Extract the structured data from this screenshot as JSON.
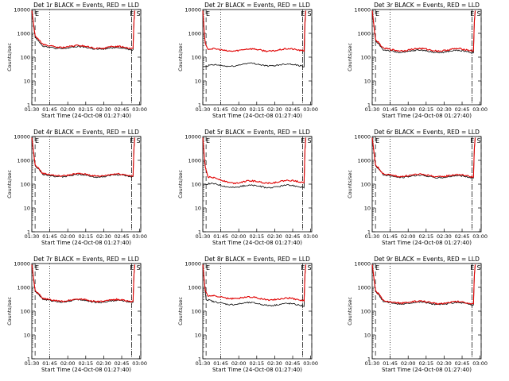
{
  "chart_data": [
    {
      "type": "line",
      "title": "Det 1r BLACK = Events, RED = LLD",
      "xlabel": "Start Time (24-Oct-08 01:27:40)",
      "ylabel": "Counts/sec",
      "x_ticks": [
        "01:30",
        "01:45",
        "02:00",
        "02:15",
        "02:30",
        "02:45",
        "03:00"
      ],
      "y_ticks": [
        "1",
        "10",
        "100",
        "1000",
        "10000"
      ],
      "log_y": true,
      "markers": [
        "E",
        "S"
      ],
      "series": [
        {
          "name": "Events",
          "color": "#000000",
          "shape": [
            [
              0,
              9000
            ],
            [
              0.03,
              700
            ],
            [
              0.1,
              260
            ],
            [
              0.6,
              240
            ],
            [
              0.93,
              220
            ],
            [
              0.94,
              9000
            ]
          ]
        },
        {
          "name": "LLD",
          "color": "#e00000",
          "shape": [
            [
              0,
              9000
            ],
            [
              0.03,
              800
            ],
            [
              0.1,
              300
            ],
            [
              0.6,
              260
            ],
            [
              0.93,
              250
            ],
            [
              0.94,
              9000
            ]
          ]
        }
      ]
    },
    {
      "type": "line",
      "title": "Det 2r BLACK = Events, RED = LLD",
      "xlabel": "Start Time (24-Oct-08 01:27:40)",
      "ylabel": "Counts/sec",
      "x_ticks": [
        "01:30",
        "01:45",
        "02:00",
        "02:15",
        "02:30",
        "02:45",
        "03:00"
      ],
      "y_ticks": [
        "1",
        "10",
        "100",
        "1000",
        "10000"
      ],
      "log_y": true,
      "markers": [
        "E",
        "S"
      ],
      "series": [
        {
          "name": "Events",
          "color": "#000000",
          "shape": [
            [
              0,
              40
            ],
            [
              0.4,
              50
            ],
            [
              0.93,
              45
            ],
            [
              0.94,
              9000
            ]
          ]
        },
        {
          "name": "LLD",
          "color": "#e00000",
          "shape": [
            [
              0,
              9000
            ],
            [
              0.02,
              400
            ],
            [
              0.05,
              200
            ],
            [
              0.93,
              200
            ],
            [
              0.94,
              9000
            ]
          ]
        }
      ]
    },
    {
      "type": "line",
      "title": "Det 3r BLACK = Events, RED = LLD",
      "xlabel": "Start Time (24-Oct-08 01:27:40)",
      "ylabel": "Counts/sec",
      "x_ticks": [
        "01:30",
        "01:45",
        "02:00",
        "02:15",
        "02:30",
        "02:45",
        "03:00"
      ],
      "y_ticks": [
        "1",
        "10",
        "100",
        "1000",
        "10000"
      ],
      "log_y": true,
      "markers": [
        "E",
        "S"
      ],
      "series": [
        {
          "name": "Events",
          "color": "#000000",
          "shape": [
            [
              0,
              9000
            ],
            [
              0.03,
              500
            ],
            [
              0.1,
              180
            ],
            [
              0.93,
              170
            ],
            [
              0.94,
              9000
            ]
          ]
        },
        {
          "name": "LLD",
          "color": "#e00000",
          "shape": [
            [
              0,
              9000
            ],
            [
              0.03,
              550
            ],
            [
              0.1,
              210
            ],
            [
              0.93,
              200
            ],
            [
              0.94,
              9000
            ]
          ]
        }
      ]
    },
    {
      "type": "line",
      "title": "Det 4r BLACK = Events, RED = LLD",
      "xlabel": "Start Time (24-Oct-08 01:27:40)",
      "ylabel": "Counts/sec",
      "x_ticks": [
        "01:30",
        "01:45",
        "02:00",
        "02:15",
        "02:30",
        "02:45",
        "03:00"
      ],
      "y_ticks": [
        "1",
        "10",
        "100",
        "1000",
        "10000"
      ],
      "log_y": true,
      "markers": [
        "E",
        "S"
      ],
      "series": [
        {
          "name": "Events",
          "color": "#000000",
          "shape": [
            [
              0,
              9000
            ],
            [
              0.03,
              600
            ],
            [
              0.1,
              230
            ],
            [
              0.93,
              220
            ],
            [
              0.94,
              9000
            ]
          ]
        },
        {
          "name": "LLD",
          "color": "#e00000",
          "shape": [
            [
              0,
              9000
            ],
            [
              0.03,
              650
            ],
            [
              0.1,
              250
            ],
            [
              0.93,
              240
            ],
            [
              0.94,
              9000
            ]
          ]
        }
      ]
    },
    {
      "type": "line",
      "title": "Det 5r BLACK = Events, RED = LLD",
      "xlabel": "Start Time (24-Oct-08 01:27:40)",
      "ylabel": "Counts/sec",
      "x_ticks": [
        "01:30",
        "01:45",
        "02:00",
        "02:15",
        "02:30",
        "02:45",
        "03:00"
      ],
      "y_ticks": [
        "1",
        "10",
        "100",
        "1000",
        "10000"
      ],
      "log_y": true,
      "markers": [
        "E",
        "S"
      ],
      "series": [
        {
          "name": "Events",
          "color": "#000000",
          "shape": [
            [
              0,
              100
            ],
            [
              0.3,
              80
            ],
            [
              0.93,
              80
            ],
            [
              0.94,
              9000
            ]
          ]
        },
        {
          "name": "LLD",
          "color": "#e00000",
          "shape": [
            [
              0,
              9000
            ],
            [
              0.02,
              600
            ],
            [
              0.05,
              180
            ],
            [
              0.3,
              120
            ],
            [
              0.93,
              130
            ],
            [
              0.94,
              9000
            ]
          ]
        }
      ]
    },
    {
      "type": "line",
      "title": "Det 6r BLACK = Events, RED = LLD",
      "xlabel": "Start Time (24-Oct-08 01:27:40)",
      "ylabel": "Counts/sec",
      "x_ticks": [
        "01:30",
        "01:45",
        "02:00",
        "02:15",
        "02:30",
        "02:45",
        "03:00"
      ],
      "y_ticks": [
        "1",
        "10",
        "100",
        "1000",
        "10000"
      ],
      "log_y": true,
      "markers": [
        "E",
        "S"
      ],
      "series": [
        {
          "name": "Events",
          "color": "#000000",
          "shape": [
            [
              0,
              9000
            ],
            [
              0.03,
              600
            ],
            [
              0.1,
              220
            ],
            [
              0.93,
              200
            ],
            [
              0.94,
              9000
            ]
          ]
        },
        {
          "name": "LLD",
          "color": "#e00000",
          "shape": [
            [
              0,
              9000
            ],
            [
              0.03,
              650
            ],
            [
              0.1,
              240
            ],
            [
              0.93,
              220
            ],
            [
              0.94,
              9000
            ]
          ]
        }
      ]
    },
    {
      "type": "line",
      "title": "Det 7r BLACK = Events, RED = LLD",
      "xlabel": "Start Time (24-Oct-08 01:27:40)",
      "ylabel": "Counts/sec",
      "x_ticks": [
        "01:30",
        "01:45",
        "02:00",
        "02:15",
        "02:30",
        "02:45",
        "03:00"
      ],
      "y_ticks": [
        "1",
        "10",
        "100",
        "1000",
        "10000"
      ],
      "log_y": true,
      "markers": [
        "E",
        "S"
      ],
      "series": [
        {
          "name": "Events",
          "color": "#000000",
          "shape": [
            [
              0,
              9000
            ],
            [
              0.03,
              700
            ],
            [
              0.1,
              280
            ],
            [
              0.93,
              250
            ],
            [
              0.94,
              9000
            ]
          ]
        },
        {
          "name": "LLD",
          "color": "#e00000",
          "shape": [
            [
              0,
              9000
            ],
            [
              0.03,
              750
            ],
            [
              0.1,
              300
            ],
            [
              0.93,
              270
            ],
            [
              0.94,
              9000
            ]
          ]
        }
      ]
    },
    {
      "type": "line",
      "title": "Det 8r BLACK = Events, RED = LLD",
      "xlabel": "Start Time (24-Oct-08 01:27:40)",
      "ylabel": "Counts/sec",
      "x_ticks": [
        "01:30",
        "01:45",
        "02:00",
        "02:15",
        "02:30",
        "02:45",
        "03:00"
      ],
      "y_ticks": [
        "1",
        "10",
        "100",
        "1000",
        "10000"
      ],
      "log_y": true,
      "markers": [
        "E",
        "S"
      ],
      "series": [
        {
          "name": "Events",
          "color": "#000000",
          "shape": [
            [
              0,
              9000
            ],
            [
              0.03,
              300
            ],
            [
              0.1,
              220
            ],
            [
              0.93,
              180
            ],
            [
              0.94,
              9000
            ]
          ]
        },
        {
          "name": "LLD",
          "color": "#e00000",
          "shape": [
            [
              0,
              9000
            ],
            [
              0.02,
              800
            ],
            [
              0.05,
              400
            ],
            [
              0.93,
              300
            ],
            [
              0.94,
              9000
            ]
          ]
        }
      ]
    },
    {
      "type": "line",
      "title": "Det 9r BLACK = Events, RED = LLD",
      "xlabel": "Start Time (24-Oct-08 01:27:40)",
      "ylabel": "Counts/sec",
      "x_ticks": [
        "01:30",
        "01:45",
        "02:00",
        "02:15",
        "02:30",
        "02:45",
        "03:00"
      ],
      "y_ticks": [
        "1",
        "10",
        "100",
        "1000",
        "10000"
      ],
      "log_y": true,
      "markers": [
        "E",
        "S"
      ],
      "series": [
        {
          "name": "Events",
          "color": "#000000",
          "shape": [
            [
              0,
              9000
            ],
            [
              0.03,
              700
            ],
            [
              0.1,
              230
            ],
            [
              0.93,
              200
            ],
            [
              0.94,
              9000
            ]
          ]
        },
        {
          "name": "LLD",
          "color": "#e00000",
          "shape": [
            [
              0,
              9000
            ],
            [
              0.03,
              750
            ],
            [
              0.1,
              250
            ],
            [
              0.93,
              220
            ],
            [
              0.94,
              9000
            ]
          ]
        }
      ]
    }
  ]
}
